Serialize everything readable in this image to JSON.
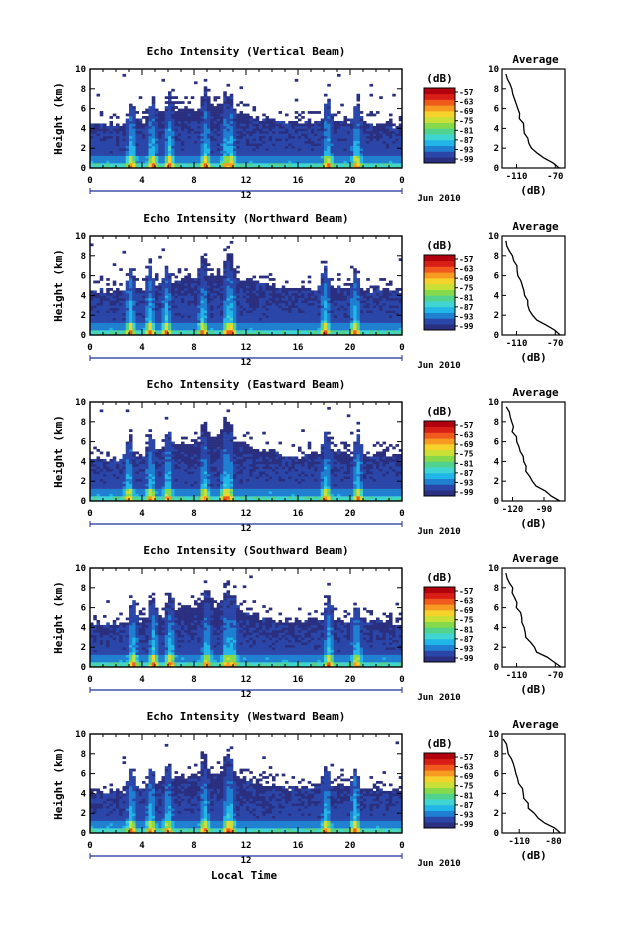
{
  "colors": {
    "scale": [
      "#2b2f7f",
      "#2a46a8",
      "#1f7fd0",
      "#22b6e8",
      "#3fd5d2",
      "#52d38d",
      "#86d94b",
      "#c9e037",
      "#f6d32a",
      "#f79a22",
      "#f05a1c",
      "#d81e16",
      "#b3000e"
    ],
    "white": "#ffffff",
    "line": "#000000"
  },
  "footer": {
    "xlabel": "Local Time"
  },
  "chart_data": [
    {
      "type": "heatmap",
      "title": "Echo Intensity (Vertical Beam)",
      "ylabel": "Height (km)",
      "yticks": [
        "0",
        "2",
        "4",
        "6",
        "8",
        "10"
      ],
      "ylim": [
        0,
        10
      ],
      "xticks": [
        "0",
        "4",
        "8",
        "12",
        "16",
        "20",
        "0"
      ],
      "xlim": [
        0,
        24
      ],
      "midday_label": "12",
      "date_label": "Jun 2010",
      "colorbar": {
        "unit": "(dB)",
        "ticks": [
          "-57",
          "-63",
          "-69",
          "-75",
          "-81",
          "-87",
          "-93",
          "-99"
        ]
      },
      "cloud_top_km": [
        4.3,
        4.5,
        4.4,
        4.6,
        4.8,
        5.2,
        5.6,
        5.9,
        6.0,
        6.1,
        6.3,
        5.8,
        5.4,
        5.0,
        4.8,
        4.6,
        4.5,
        4.7,
        5.1,
        4.9,
        4.6,
        4.5,
        4.6,
        4.4,
        4.4
      ],
      "convective_cells_hr": [
        3.2,
        4.8,
        6.1,
        8.9,
        10.5,
        10.8,
        18.3,
        20.5
      ],
      "profile": {
        "title": "Average",
        "xlabel": "(dB)",
        "xticks": [
          "-110",
          "-70"
        ],
        "xlim": [
          -125,
          -60
        ],
        "heights_km": [
          0,
          0.5,
          1,
          1.5,
          2,
          2.5,
          3,
          3.5,
          4,
          4.5,
          5,
          5.5,
          6,
          6.5,
          7,
          7.5,
          8,
          8.5,
          9,
          9.5
        ],
        "values_db": [
          -66,
          -72,
          -82,
          -90,
          -94,
          -97,
          -99,
          -101,
          -103,
          -104,
          -106,
          -107,
          -109,
          -110,
          -111,
          -113,
          -114,
          -117,
          -119,
          -121
        ]
      }
    },
    {
      "type": "heatmap",
      "title": "Echo Intensity (Northward Beam)",
      "ylabel": "Height (km)",
      "yticks": [
        "0",
        "2",
        "4",
        "6",
        "8",
        "10"
      ],
      "ylim": [
        0,
        10
      ],
      "xticks": [
        "0",
        "4",
        "8",
        "12",
        "16",
        "20",
        "0"
      ],
      "xlim": [
        0,
        24
      ],
      "midday_label": "12",
      "date_label": "Jun 2010",
      "colorbar": {
        "unit": "(dB)",
        "ticks": [
          "-57",
          "-63",
          "-69",
          "-75",
          "-81",
          "-87",
          "-93",
          "-99"
        ]
      },
      "cloud_top_km": [
        4.6,
        4.5,
        4.3,
        4.4,
        4.6,
        4.9,
        5.3,
        5.7,
        5.9,
        6.1,
        6.2,
        5.9,
        5.6,
        5.3,
        5.0,
        4.7,
        4.5,
        4.6,
        4.9,
        4.8,
        4.5,
        4.4,
        4.5,
        4.6,
        4.5
      ],
      "convective_cells_hr": [
        3.1,
        4.6,
        5.9,
        8.7,
        10.6,
        10.9,
        18.1,
        20.4
      ],
      "profile": {
        "title": "Average",
        "xlabel": "(dB)",
        "xticks": [
          "-110",
          "-70"
        ],
        "xlim": [
          -125,
          -60
        ],
        "heights_km": [
          0,
          0.5,
          1,
          1.5,
          2,
          2.5,
          3,
          3.5,
          4,
          4.5,
          5,
          5.5,
          6,
          6.5,
          7,
          7.5,
          8,
          8.5,
          9,
          9.5
        ],
        "values_db": [
          -65,
          -71,
          -80,
          -88,
          -93,
          -96,
          -98,
          -100,
          -102,
          -104,
          -105,
          -107,
          -108,
          -110,
          -111,
          -113,
          -115,
          -117,
          -119,
          -121
        ]
      }
    },
    {
      "type": "heatmap",
      "title": "Echo Intensity (Eastward Beam)",
      "ylabel": "Height (km)",
      "yticks": [
        "0",
        "2",
        "4",
        "6",
        "8",
        "10"
      ],
      "ylim": [
        0,
        10
      ],
      "xticks": [
        "0",
        "4",
        "8",
        "12",
        "16",
        "20",
        "0"
      ],
      "xlim": [
        0,
        24
      ],
      "midday_label": "12",
      "date_label": "Jun 2010",
      "colorbar": {
        "unit": "(dB)",
        "ticks": [
          "-57",
          "-63",
          "-69",
          "-75",
          "-81",
          "-87",
          "-93",
          "-99"
        ]
      },
      "cloud_top_km": [
        4.4,
        4.3,
        4.2,
        4.5,
        4.7,
        5.0,
        5.4,
        5.8,
        6.0,
        6.2,
        6.3,
        6.0,
        5.6,
        5.2,
        4.9,
        4.7,
        4.6,
        4.8,
        5.2,
        5.0,
        4.7,
        4.6,
        4.8,
        4.6,
        4.5
      ],
      "convective_cells_hr": [
        3.0,
        4.7,
        6.0,
        8.8,
        10.4,
        10.7,
        18.2,
        20.6
      ],
      "profile": {
        "title": "Average",
        "xlabel": "(dB)",
        "xticks": [
          "-120",
          "-90"
        ],
        "xlim": [
          -130,
          -70
        ],
        "heights_km": [
          0,
          0.5,
          1,
          1.5,
          2,
          2.5,
          3,
          3.5,
          4,
          4.5,
          5,
          5.5,
          6,
          6.5,
          7,
          7.5,
          8,
          8.5,
          9,
          9.5
        ],
        "values_db": [
          -75,
          -82,
          -90,
          -97,
          -101,
          -104,
          -106,
          -108,
          -110,
          -111,
          -113,
          -114,
          -116,
          -117,
          -119,
          -120,
          -121,
          -123,
          -124,
          -126
        ]
      }
    },
    {
      "type": "heatmap",
      "title": "Echo Intensity (Southward Beam)",
      "ylabel": "Height (km)",
      "yticks": [
        "0",
        "2",
        "4",
        "6",
        "8",
        "10"
      ],
      "ylim": [
        0,
        10
      ],
      "xticks": [
        "0",
        "4",
        "8",
        "12",
        "16",
        "20",
        "0"
      ],
      "xlim": [
        0,
        24
      ],
      "midday_label": "12",
      "date_label": "Jun 2010",
      "colorbar": {
        "unit": "(dB)",
        "ticks": [
          "-57",
          "-63",
          "-69",
          "-75",
          "-81",
          "-87",
          "-93",
          "-99"
        ]
      },
      "cloud_top_km": [
        4.5,
        4.4,
        4.3,
        4.5,
        4.8,
        5.1,
        5.5,
        5.9,
        6.1,
        6.2,
        6.3,
        5.9,
        5.5,
        5.1,
        4.9,
        4.7,
        4.6,
        4.8,
        5.0,
        4.9,
        4.6,
        4.5,
        4.6,
        4.5,
        4.4
      ],
      "convective_cells_hr": [
        3.3,
        4.9,
        6.2,
        9.0,
        10.5,
        11.0,
        18.4,
        20.5
      ],
      "profile": {
        "title": "Average",
        "xlabel": "(dB)",
        "xticks": [
          "-110",
          "-70"
        ],
        "xlim": [
          -125,
          -60
        ],
        "heights_km": [
          0,
          0.5,
          1,
          1.5,
          2,
          2.5,
          3,
          3.5,
          4,
          4.5,
          5,
          5.5,
          6,
          6.5,
          7,
          7.5,
          8,
          8.5,
          9,
          9.5
        ],
        "values_db": [
          -64,
          -70,
          -79,
          -88,
          -92,
          -96,
          -99,
          -101,
          -103,
          -104,
          -106,
          -107,
          -109,
          -110,
          -112,
          -113,
          -115,
          -117,
          -119,
          -121
        ]
      }
    },
    {
      "type": "heatmap",
      "title": "Echo Intensity (Westward Beam)",
      "ylabel": "Height (km)",
      "yticks": [
        "0",
        "2",
        "4",
        "6",
        "8",
        "10"
      ],
      "ylim": [
        0,
        10
      ],
      "xticks": [
        "0",
        "4",
        "8",
        "12",
        "16",
        "20",
        "0"
      ],
      "xlim": [
        0,
        24
      ],
      "midday_label": "12",
      "date_label": "Jun 2010",
      "colorbar": {
        "unit": "(dB)",
        "ticks": [
          "-57",
          "-63",
          "-69",
          "-75",
          "-81",
          "-87",
          "-93",
          "-99"
        ]
      },
      "cloud_top_km": [
        4.3,
        4.2,
        4.1,
        4.4,
        4.6,
        5.0,
        5.3,
        5.7,
        5.9,
        6.0,
        6.1,
        5.8,
        5.4,
        5.1,
        4.8,
        4.6,
        4.5,
        4.6,
        4.9,
        4.8,
        4.5,
        4.4,
        4.5,
        4.3,
        4.3
      ],
      "convective_cells_hr": [
        3.2,
        4.7,
        6.0,
        8.8,
        10.6,
        10.8,
        18.2,
        20.4
      ],
      "profile": {
        "title": "Average",
        "xlabel": "(dB)",
        "xticks": [
          "-110",
          "-80"
        ],
        "xlim": [
          -125,
          -70
        ],
        "heights_km": [
          0,
          0.5,
          1,
          1.5,
          2,
          2.5,
          3,
          3.5,
          4,
          4.5,
          5,
          5.5,
          6,
          6.5,
          7,
          7.5,
          8,
          8.5,
          9,
          9.5
        ],
        "values_db": [
          -74,
          -80,
          -87,
          -94,
          -98,
          -101,
          -103,
          -105,
          -107,
          -108,
          -110,
          -111,
          -113,
          -114,
          -116,
          -117,
          -119,
          -121,
          -122,
          -124
        ]
      }
    }
  ]
}
